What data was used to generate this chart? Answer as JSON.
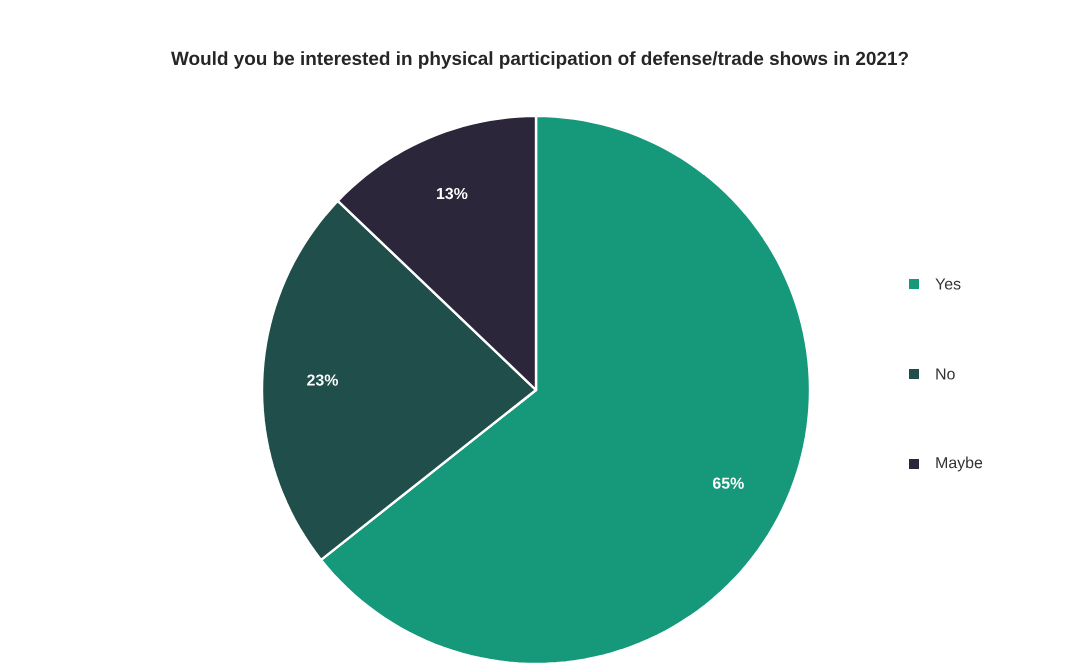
{
  "chart_data": {
    "type": "pie",
    "title": "Would you be interested in physical participation of defense/trade shows in 2021?",
    "categories": [
      "Yes",
      "No",
      "Maybe"
    ],
    "values": [
      65,
      23,
      13
    ],
    "value_labels": [
      "65%",
      "23%",
      "13%"
    ],
    "colors": [
      "#16997a",
      "#1f4e4b",
      "#2b2639"
    ],
    "legend": "right"
  }
}
